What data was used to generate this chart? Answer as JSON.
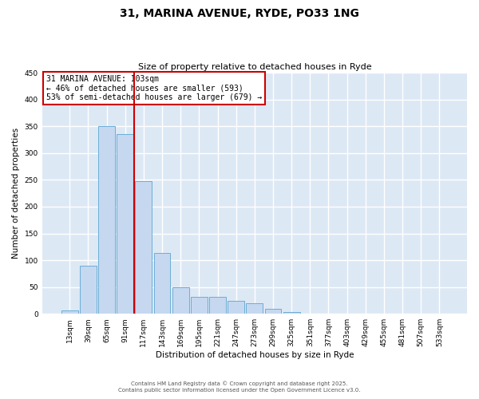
{
  "title": "31, MARINA AVENUE, RYDE, PO33 1NG",
  "subtitle": "Size of property relative to detached houses in Ryde",
  "xlabel": "Distribution of detached houses by size in Ryde",
  "ylabel": "Number of detached properties",
  "bar_labels": [
    "13sqm",
    "39sqm",
    "65sqm",
    "91sqm",
    "117sqm",
    "143sqm",
    "169sqm",
    "195sqm",
    "221sqm",
    "247sqm",
    "273sqm",
    "299sqm",
    "325sqm",
    "351sqm",
    "377sqm",
    "403sqm",
    "429sqm",
    "455sqm",
    "481sqm",
    "507sqm",
    "533sqm"
  ],
  "bar_values": [
    7,
    90,
    350,
    335,
    247,
    113,
    50,
    32,
    31,
    24,
    20,
    9,
    4,
    1,
    1,
    0,
    1,
    0,
    0,
    0,
    0
  ],
  "bar_color": "#c5d8f0",
  "bar_edgecolor": "#6baed6",
  "vline_x": 3.5,
  "vline_color": "#cc0000",
  "annotation_line1": "31 MARINA AVENUE: 103sqm",
  "annotation_line2": "← 46% of detached houses are smaller (593)",
  "annotation_line3": "53% of semi-detached houses are larger (679) →",
  "annotation_box_edgecolor": "#cc0000",
  "annotation_box_facecolor": "#ffffff",
  "ylim": [
    0,
    450
  ],
  "yticks": [
    0,
    50,
    100,
    150,
    200,
    250,
    300,
    350,
    400,
    450
  ],
  "footer_line1": "Contains HM Land Registry data © Crown copyright and database right 2025.",
  "footer_line2": "Contains public sector information licensed under the Open Government Licence v3.0.",
  "background_color": "#ffffff",
  "grid_color": "#ffffff",
  "axes_background": "#dde8f5"
}
